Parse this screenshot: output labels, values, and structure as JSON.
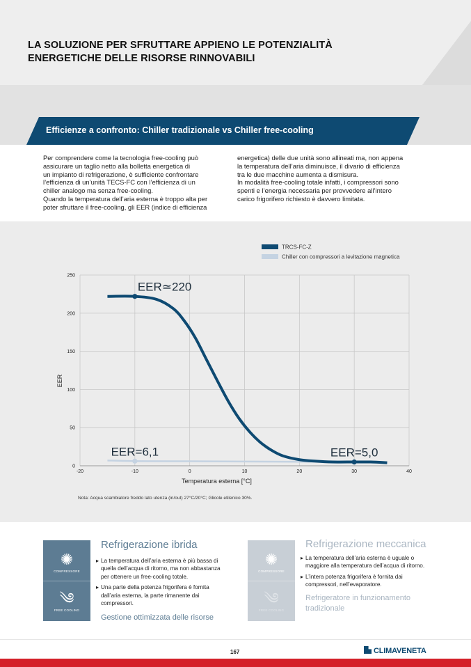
{
  "page": {
    "title_line1": "LA SOLUZIONE PER SFRUTTARE APPIENO LE POTENZIALITÀ",
    "title_line2": "ENERGETICHE DELLE RISORSE RINNOVABILI",
    "banner": "Efficienze a confronto: Chiller tradizionale vs Chiller free-cooling",
    "col1": [
      "Per comprendere come la tecnologia free-cooling può",
      "assicurare un taglio netto alla bolletta energetica di",
      "un impianto di refrigerazione, è sufficiente confrontare",
      "l’efficienza di un’unità TECS-FC con l’efficienza di un",
      "chiller analogo ma senza free-cooling.",
      "Quando la temperatura dell’aria esterna è troppo alta per",
      "poter sfruttare il free-cooling, gli EER (indice di efficienza"
    ],
    "col2": [
      "energetica) delle due unità sono allineati ma, non appena",
      "la temperatura dell’aria diminuisce, il divario di efficienza",
      "tra le due macchine aumenta a dismisura.",
      "In modalità free-cooling totale infatti, i compressori sono",
      "spenti e l’energia necessaria per provvedere all’intero",
      "carico frigorifero richiesto è davvero limitata."
    ],
    "note": "Nota: Acqua scambiatore freddo lato utenza (in/out) 27°C/20°C; Glicole etilenico 30%.",
    "page_number": "167",
    "logo_text": "CLIMAVENETA",
    "colors": {
      "brand_blue": "#0e4a72",
      "series_light": "#c5d3e2",
      "red": "#d42029"
    }
  },
  "chart_data": {
    "type": "line",
    "xlabel": "Temperatura esterna [°C]",
    "ylabel": "EER",
    "xlim": [
      -20,
      40
    ],
    "ylim": [
      0,
      250
    ],
    "x_ticks": [
      -20,
      -10,
      0,
      10,
      20,
      30,
      40
    ],
    "y_ticks": [
      0,
      50,
      100,
      150,
      200,
      250
    ],
    "grid": true,
    "legend_position": "top-right",
    "series": [
      {
        "name": "TRCS-FC-Z",
        "color": "#0e4a72",
        "x": [
          -15,
          -10,
          -6,
          -3,
          -1,
          1,
          3,
          5,
          7,
          9,
          11,
          13,
          15,
          17,
          20,
          23,
          26,
          30,
          33,
          36
        ],
        "y": [
          222,
          222,
          218,
          206,
          190,
          168,
          140,
          112,
          85,
          62,
          44,
          30,
          20,
          13,
          8,
          6,
          5,
          5,
          5,
          4
        ]
      },
      {
        "name": "Chiller con compressori a levitazione magnetica",
        "color": "#c5d3e2",
        "x": [
          -15,
          -10,
          0,
          10,
          20,
          30,
          36
        ],
        "y": [
          7,
          6.1,
          5.9,
          5.6,
          5.3,
          5.0,
          4.8
        ]
      }
    ],
    "points": [
      {
        "series": 0,
        "x": -10,
        "y": 222
      },
      {
        "series": 0,
        "x": 30,
        "y": 5
      },
      {
        "series": 1,
        "x": -10,
        "y": 6.1
      }
    ],
    "annotations": [
      {
        "text": "EER≃220",
        "x": -10,
        "y": 222,
        "anchor": "above-right"
      },
      {
        "text": "EER=6,1",
        "x": -10,
        "y": 6.1,
        "anchor": "above"
      },
      {
        "text": "EER=5,0",
        "x": 30,
        "y": 5,
        "anchor": "above"
      }
    ]
  },
  "boxes": {
    "ibrida": {
      "title": "Refrigerazione ibrida",
      "icon_top_label": "COMPRESSORE",
      "icon_bottom_label": "FREE COOLING",
      "bullets": [
        "La temperatura dell’aria esterna è più bassa di quella dell’acqua di ritorno, ma non abbastanza per ottenere un free-cooling totale.",
        "Una parte della potenza frigorifera è fornita dall’aria esterna, la parte rimanente dai compressori."
      ],
      "footer": "Gestione ottimizzata delle risorse",
      "color": "#5d7c93"
    },
    "meccanica": {
      "title": "Refrigerazione meccanica",
      "icon_top_label": "COMPRESSORE",
      "icon_bottom_label": "FREE COOLING",
      "bullets": [
        "La temperatura dell’aria esterna è uguale o maggiore alla temperatura dell’acqua di ritorno.",
        " L’intera potenza frigorifera è fornita dai compressori, nell’evaporatore."
      ],
      "footer": "Refrigeratore in funzionamento tradizionale",
      "color": "#aab6c2"
    }
  }
}
